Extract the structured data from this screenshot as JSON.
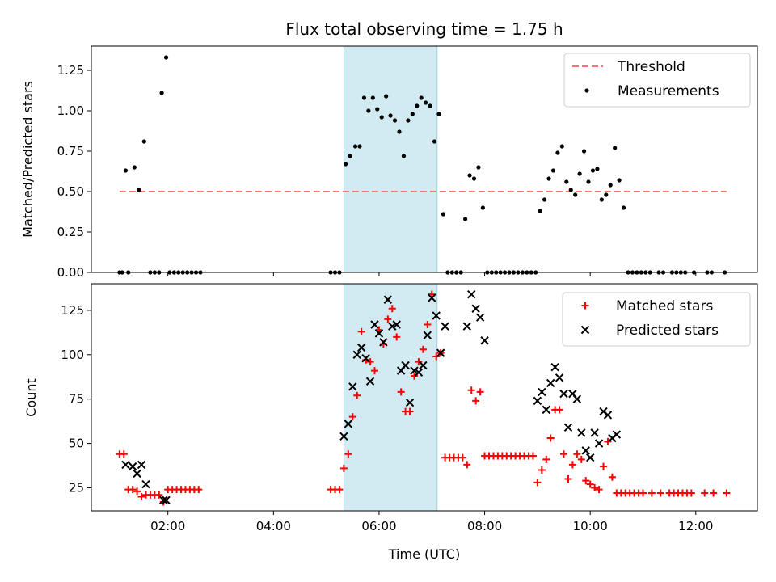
{
  "title": "Flux total observing time = 1.75 h",
  "colors": {
    "band": "#add8e6",
    "threshold": "#ff7070",
    "measurement": "#000000",
    "matched": "#ff0000",
    "predicted": "#000000"
  },
  "chart_data": [
    {
      "type": "scatter",
      "ylabel": "Matched/Predicted stars",
      "xlim": [
        "00:33",
        "13:10"
      ],
      "ylim": [
        0,
        1.4
      ],
      "yticks": [
        "0.00",
        "0.25",
        "0.50",
        "0.75",
        "1.00",
        "1.25"
      ],
      "shaded_interval": [
        "05:20",
        "07:06"
      ],
      "legend_position": "upper right",
      "threshold": {
        "name": "Threshold",
        "value": 0.5,
        "x": [
          "01:05",
          "12:35"
        ]
      },
      "series": [
        {
          "name": "Measurements",
          "points": [
            [
              "01:05",
              0
            ],
            [
              "01:08",
              0
            ],
            [
              "01:15",
              0
            ],
            [
              "01:12",
              0.63
            ],
            [
              "01:22",
              0.65
            ],
            [
              "01:27",
              0.51
            ],
            [
              "01:33",
              0.81
            ],
            [
              "01:40",
              0
            ],
            [
              "01:45",
              0
            ],
            [
              "01:50",
              0
            ],
            [
              "01:53",
              1.11
            ],
            [
              "01:58",
              1.33
            ],
            [
              "02:02",
              0
            ],
            [
              "02:07",
              0
            ],
            [
              "02:12",
              0
            ],
            [
              "02:17",
              0
            ],
            [
              "02:22",
              0
            ],
            [
              "02:27",
              0
            ],
            [
              "02:32",
              0
            ],
            [
              "02:37",
              0
            ],
            [
              "05:05",
              0
            ],
            [
              "05:10",
              0
            ],
            [
              "05:15",
              0
            ],
            [
              "05:22",
              0.67
            ],
            [
              "05:27",
              0.72
            ],
            [
              "05:33",
              0.78
            ],
            [
              "05:38",
              0.78
            ],
            [
              "05:43",
              1.08
            ],
            [
              "05:48",
              1.0
            ],
            [
              "05:53",
              1.08
            ],
            [
              "05:58",
              1.01
            ],
            [
              "06:03",
              0.96
            ],
            [
              "06:08",
              1.09
            ],
            [
              "06:13",
              0.97
            ],
            [
              "06:18",
              0.94
            ],
            [
              "06:23",
              0.87
            ],
            [
              "06:28",
              0.72
            ],
            [
              "06:33",
              0.94
            ],
            [
              "06:38",
              0.98
            ],
            [
              "06:43",
              1.03
            ],
            [
              "06:48",
              1.08
            ],
            [
              "06:53",
              1.05
            ],
            [
              "06:58",
              1.03
            ],
            [
              "07:03",
              0.81
            ],
            [
              "07:08",
              0.98
            ],
            [
              "07:13",
              0.36
            ],
            [
              "07:18",
              0
            ],
            [
              "07:23",
              0
            ],
            [
              "07:28",
              0
            ],
            [
              "07:33",
              0
            ],
            [
              "07:38",
              0.33
            ],
            [
              "07:43",
              0.6
            ],
            [
              "07:48",
              0.58
            ],
            [
              "07:53",
              0.65
            ],
            [
              "07:58",
              0.4
            ],
            [
              "08:03",
              0
            ],
            [
              "08:08",
              0
            ],
            [
              "08:13",
              0
            ],
            [
              "08:18",
              0
            ],
            [
              "08:23",
              0
            ],
            [
              "08:28",
              0
            ],
            [
              "08:33",
              0
            ],
            [
              "08:38",
              0
            ],
            [
              "08:43",
              0
            ],
            [
              "08:48",
              0
            ],
            [
              "08:53",
              0
            ],
            [
              "08:58",
              0
            ],
            [
              "09:03",
              0.38
            ],
            [
              "09:08",
              0.45
            ],
            [
              "09:13",
              0.58
            ],
            [
              "09:18",
              0.63
            ],
            [
              "09:23",
              0.74
            ],
            [
              "09:28",
              0.78
            ],
            [
              "09:33",
              0.56
            ],
            [
              "09:38",
              0.51
            ],
            [
              "09:43",
              0.48
            ],
            [
              "09:48",
              0.61
            ],
            [
              "09:53",
              0.75
            ],
            [
              "09:58",
              0.56
            ],
            [
              "10:03",
              0.63
            ],
            [
              "10:08",
              0.64
            ],
            [
              "10:13",
              0.45
            ],
            [
              "10:18",
              0.48
            ],
            [
              "10:23",
              0.54
            ],
            [
              "10:28",
              0.77
            ],
            [
              "10:33",
              0.57
            ],
            [
              "10:38",
              0.4
            ],
            [
              "10:43",
              0
            ],
            [
              "10:48",
              0
            ],
            [
              "10:53",
              0
            ],
            [
              "10:58",
              0
            ],
            [
              "11:03",
              0
            ],
            [
              "11:08",
              0
            ],
            [
              "11:18",
              0
            ],
            [
              "11:23",
              0
            ],
            [
              "11:33",
              0
            ],
            [
              "11:38",
              0
            ],
            [
              "11:43",
              0
            ],
            [
              "11:48",
              0
            ],
            [
              "11:58",
              0
            ],
            [
              "12:13",
              0
            ],
            [
              "12:18",
              0
            ],
            [
              "12:33",
              0
            ]
          ]
        }
      ]
    },
    {
      "type": "scatter",
      "xlabel": "Time (UTC)",
      "ylabel": "Count",
      "xlim": [
        "00:33",
        "13:10"
      ],
      "ylim": [
        12,
        140
      ],
      "xticks": [
        "02:00",
        "04:00",
        "06:00",
        "08:00",
        "10:00",
        "12:00"
      ],
      "yticks": [
        "25",
        "50",
        "75",
        "100",
        "125"
      ],
      "shaded_interval": [
        "05:20",
        "07:06"
      ],
      "legend_position": "upper right",
      "series": [
        {
          "name": "Matched stars",
          "points": [
            [
              "01:05",
              44
            ],
            [
              "01:10",
              44
            ],
            [
              "01:15",
              24
            ],
            [
              "01:20",
              24
            ],
            [
              "01:25",
              23
            ],
            [
              "01:30",
              20
            ],
            [
              "01:35",
              21
            ],
            [
              "01:40",
              21
            ],
            [
              "01:45",
              21
            ],
            [
              "01:50",
              21
            ],
            [
              "01:55",
              17
            ],
            [
              "02:00",
              24
            ],
            [
              "02:05",
              24
            ],
            [
              "02:10",
              24
            ],
            [
              "02:15",
              24
            ],
            [
              "02:20",
              24
            ],
            [
              "02:25",
              24
            ],
            [
              "02:30",
              24
            ],
            [
              "02:35",
              24
            ],
            [
              "05:05",
              24
            ],
            [
              "05:10",
              24
            ],
            [
              "05:15",
              24
            ],
            [
              "05:20",
              36
            ],
            [
              "05:25",
              44
            ],
            [
              "05:30",
              65
            ],
            [
              "05:35",
              77
            ],
            [
              "05:40",
              113
            ],
            [
              "05:45",
              97
            ],
            [
              "05:50",
              96
            ],
            [
              "05:55",
              91
            ],
            [
              "06:00",
              114
            ],
            [
              "06:05",
              106
            ],
            [
              "06:10",
              120
            ],
            [
              "06:15",
              126
            ],
            [
              "06:20",
              110
            ],
            [
              "06:25",
              79
            ],
            [
              "06:30",
              68
            ],
            [
              "06:35",
              68
            ],
            [
              "06:40",
              88
            ],
            [
              "06:45",
              96
            ],
            [
              "06:50",
              103
            ],
            [
              "06:55",
              117
            ],
            [
              "07:00",
              134
            ],
            [
              "07:05",
              99
            ],
            [
              "07:10",
              101
            ],
            [
              "07:15",
              42
            ],
            [
              "07:20",
              42
            ],
            [
              "07:25",
              42
            ],
            [
              "07:30",
              42
            ],
            [
              "07:35",
              42
            ],
            [
              "07:40",
              38
            ],
            [
              "07:45",
              80
            ],
            [
              "07:50",
              74
            ],
            [
              "07:55",
              79
            ],
            [
              "08:00",
              43
            ],
            [
              "08:05",
              43
            ],
            [
              "08:10",
              43
            ],
            [
              "08:15",
              43
            ],
            [
              "08:20",
              43
            ],
            [
              "08:25",
              43
            ],
            [
              "08:30",
              43
            ],
            [
              "08:35",
              43
            ],
            [
              "08:40",
              43
            ],
            [
              "08:45",
              43
            ],
            [
              "08:50",
              43
            ],
            [
              "08:55",
              43
            ],
            [
              "09:00",
              28
            ],
            [
              "09:05",
              35
            ],
            [
              "09:10",
              41
            ],
            [
              "09:15",
              53
            ],
            [
              "09:20",
              69
            ],
            [
              "09:25",
              69
            ],
            [
              "09:30",
              44
            ],
            [
              "09:35",
              30
            ],
            [
              "09:40",
              38
            ],
            [
              "09:45",
              44
            ],
            [
              "09:50",
              41
            ],
            [
              "09:55",
              29
            ],
            [
              "10:00",
              27
            ],
            [
              "10:05",
              25
            ],
            [
              "10:10",
              24
            ],
            [
              "10:15",
              37
            ],
            [
              "10:20",
              51
            ],
            [
              "10:25",
              31
            ],
            [
              "10:30",
              22
            ],
            [
              "10:35",
              22
            ],
            [
              "10:40",
              22
            ],
            [
              "10:45",
              22
            ],
            [
              "10:50",
              22
            ],
            [
              "10:55",
              22
            ],
            [
              "11:00",
              22
            ],
            [
              "11:10",
              22
            ],
            [
              "11:20",
              22
            ],
            [
              "11:30",
              22
            ],
            [
              "11:35",
              22
            ],
            [
              "11:40",
              22
            ],
            [
              "11:45",
              22
            ],
            [
              "11:50",
              22
            ],
            [
              "11:55",
              22
            ],
            [
              "12:10",
              22
            ],
            [
              "12:20",
              22
            ],
            [
              "12:35",
              22
            ]
          ]
        },
        {
          "name": "Predicted stars",
          "points": [
            [
              "01:12",
              38
            ],
            [
              "01:20",
              37
            ],
            [
              "01:25",
              33
            ],
            [
              "01:30",
              38
            ],
            [
              "01:35",
              27
            ],
            [
              "01:55",
              18
            ],
            [
              "01:58",
              18
            ],
            [
              "05:20",
              54
            ],
            [
              "05:25",
              61
            ],
            [
              "05:30",
              82
            ],
            [
              "05:35",
              100
            ],
            [
              "05:40",
              104
            ],
            [
              "05:45",
              98
            ],
            [
              "05:50",
              85
            ],
            [
              "05:55",
              117
            ],
            [
              "06:00",
              112
            ],
            [
              "06:05",
              107
            ],
            [
              "06:10",
              131
            ],
            [
              "06:15",
              116
            ],
            [
              "06:20",
              117
            ],
            [
              "06:25",
              91
            ],
            [
              "06:30",
              94
            ],
            [
              "06:35",
              73
            ],
            [
              "06:40",
              91
            ],
            [
              "06:45",
              90
            ],
            [
              "06:50",
              94
            ],
            [
              "06:55",
              111
            ],
            [
              "07:00",
              132
            ],
            [
              "07:05",
              122
            ],
            [
              "07:10",
              101
            ],
            [
              "07:15",
              116
            ],
            [
              "07:40",
              116
            ],
            [
              "07:45",
              134
            ],
            [
              "07:50",
              126
            ],
            [
              "07:55",
              121
            ],
            [
              "08:00",
              108
            ],
            [
              "09:00",
              74
            ],
            [
              "09:05",
              79
            ],
            [
              "09:10",
              69
            ],
            [
              "09:15",
              84
            ],
            [
              "09:20",
              93
            ],
            [
              "09:25",
              87
            ],
            [
              "09:30",
              78
            ],
            [
              "09:35",
              59
            ],
            [
              "09:40",
              78
            ],
            [
              "09:45",
              75
            ],
            [
              "09:50",
              56
            ],
            [
              "09:55",
              46
            ],
            [
              "10:00",
              42
            ],
            [
              "10:05",
              56
            ],
            [
              "10:10",
              50
            ],
            [
              "10:15",
              68
            ],
            [
              "10:20",
              66
            ],
            [
              "10:25",
              53
            ],
            [
              "10:30",
              55
            ]
          ]
        }
      ]
    }
  ]
}
